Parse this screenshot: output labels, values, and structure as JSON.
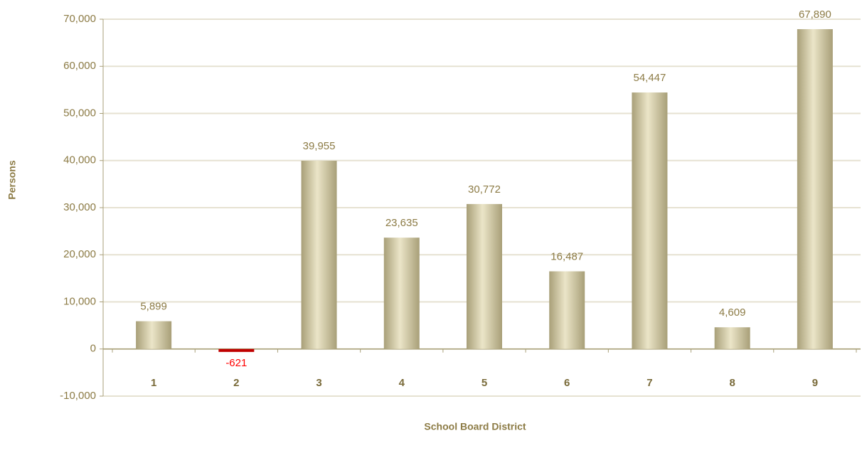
{
  "chart_data": {
    "type": "bar",
    "x_label": "School Board District",
    "y_label": "Persons",
    "categories": [
      "1",
      "2",
      "3",
      "4",
      "5",
      "6",
      "7",
      "8",
      "9"
    ],
    "values": [
      5899,
      -621,
      39955,
      23635,
      30772,
      16487,
      54447,
      4609,
      67890
    ],
    "value_labels": [
      "5,899",
      "-621",
      "39,955",
      "23,635",
      "30,772",
      "16,487",
      "54,447",
      "4,609",
      "67,890"
    ],
    "color": "#a89f78",
    "highlight_color": "#ebe5c8",
    "negative_color": "#c00000",
    "negative_label_color": "#ff0000",
    "ylim": [
      -10000,
      70000
    ],
    "yticks": [
      {
        "value": -10000,
        "label": "-10,000"
      },
      0,
      {
        "value": 10000,
        "label": "10,000"
      },
      {
        "value": 20000,
        "label": "20,000"
      },
      {
        "value": 30000,
        "label": "30,000"
      },
      {
        "value": 40000,
        "label": "40,000"
      },
      {
        "value": 50000,
        "label": "50,000"
      },
      {
        "value": 60000,
        "label": "60,000"
      },
      {
        "value": 70000,
        "label": "70,000"
      }
    ],
    "grid": true
  }
}
